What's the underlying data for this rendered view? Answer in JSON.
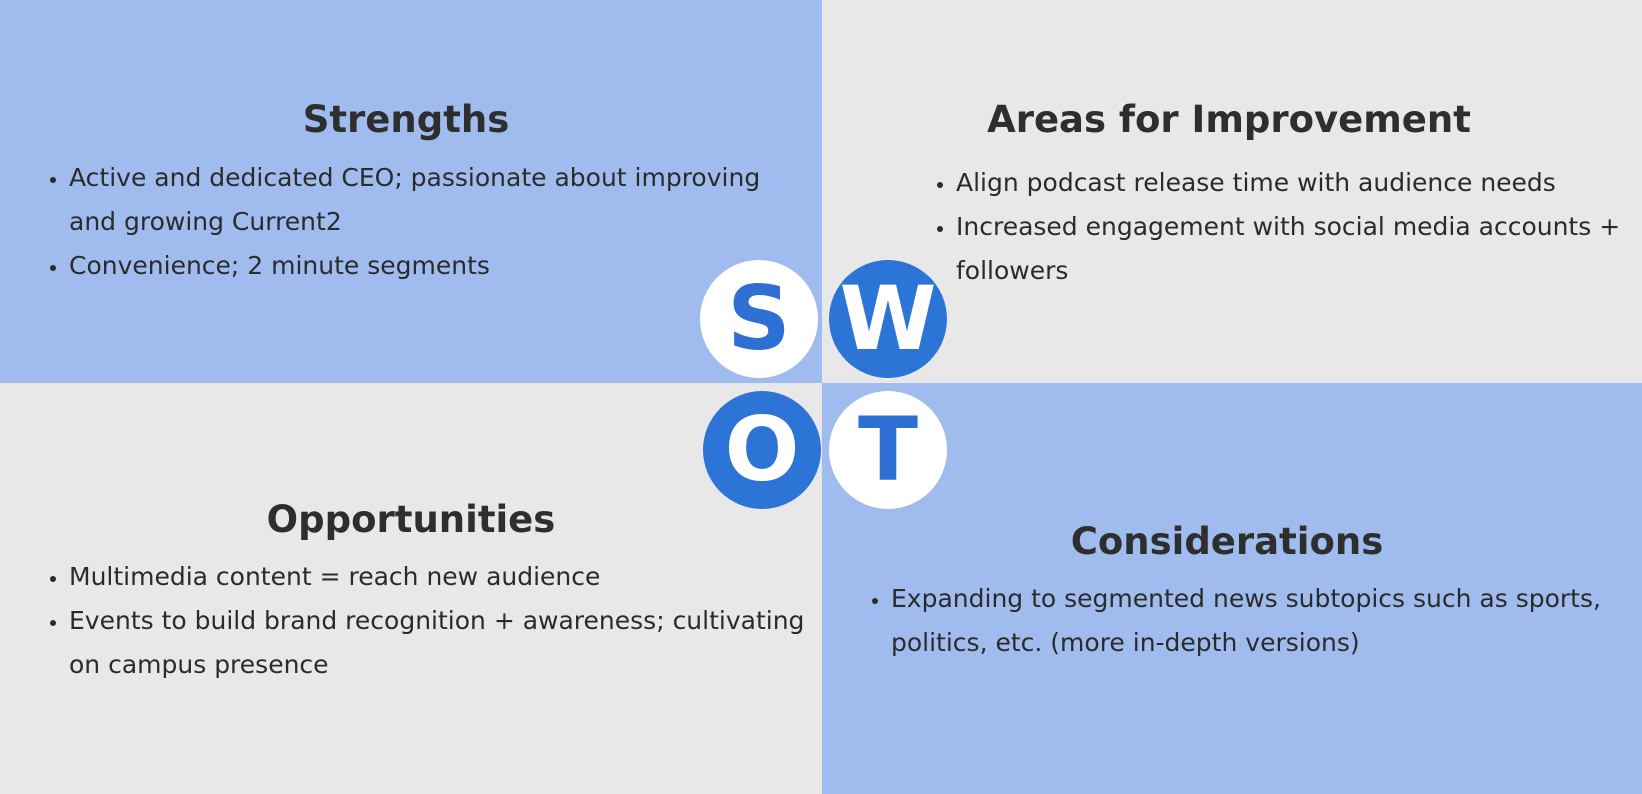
{
  "colors": {
    "quadrant_blue": "#a0bcee",
    "quadrant_gray": "#e8e8e8",
    "circle_blue": "#2c74d6",
    "circle_white": "#ffffff",
    "text": "#2b2b2b"
  },
  "circles": {
    "s": "S",
    "w": "W",
    "o": "O",
    "t": "T"
  },
  "strengths": {
    "title": "Strengths",
    "items": [
      "Active and dedicated CEO; passionate about improving and growing Current2",
      "Convenience; 2 minute segments"
    ]
  },
  "weaknesses": {
    "title": "Areas for Improvement",
    "items": [
      "Align podcast release time with audience needs",
      "Increased engagement with social media accounts + followers"
    ]
  },
  "opportunities": {
    "title": "Opportunities",
    "items": [
      "Multimedia content = reach new audience",
      "Events to build brand recognition + awareness; cultivating on campus presence"
    ]
  },
  "threats": {
    "title": "Considerations",
    "items": [
      "Expanding to segmented news subtopics such as sports, politics, etc. (more in-depth versions)"
    ]
  }
}
